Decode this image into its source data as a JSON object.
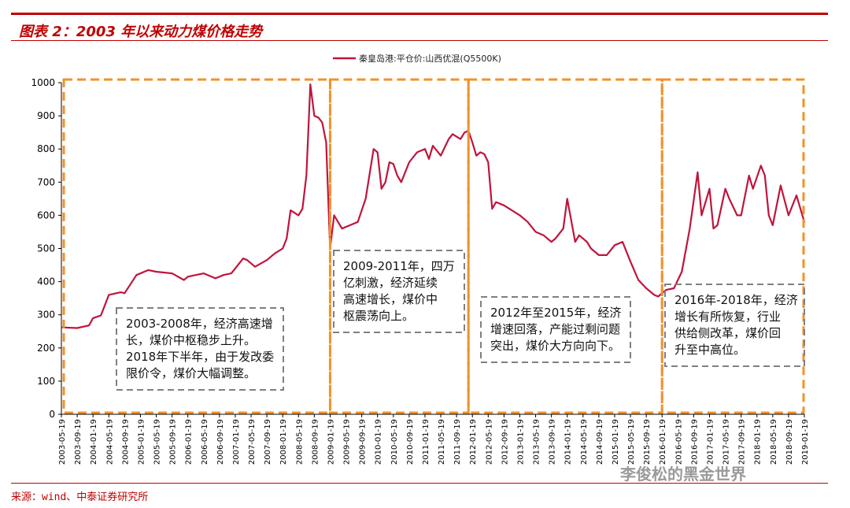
{
  "header": {
    "title": "图表 2：2003 年以来动力煤价格走势"
  },
  "footer": {
    "source": "来源：wind、中泰证券研究所",
    "watermark": "李俊松的黑金世界"
  },
  "chart_data": {
    "type": "line",
    "title": "",
    "xlabel": "",
    "ylabel": "",
    "ylim": [
      0,
      1000
    ],
    "yticks": [
      0,
      100,
      200,
      300,
      400,
      500,
      600,
      700,
      800,
      900,
      1000
    ],
    "grid": false,
    "legend_position": "top-center",
    "colors": {
      "series": "#c0143c",
      "box_orange": "#f0922b",
      "box_gray": "#808080"
    },
    "x_tick_labels": [
      "2003-05-19",
      "2003-09-19",
      "2004-01-19",
      "2004-05-19",
      "2004-09-19",
      "2005-01-19",
      "2005-05-19",
      "2005-09-19",
      "2006-01-19",
      "2006-05-19",
      "2006-09-19",
      "2007-01-19",
      "2007-05-19",
      "2007-09-19",
      "2008-01-19",
      "2008-05-19",
      "2008-09-19",
      "2009-01-19",
      "2009-05-19",
      "2009-09-19",
      "2010-01-19",
      "2010-05-19",
      "2010-09-19",
      "2011-01-19",
      "2011-05-19",
      "2011-09-19",
      "2012-01-19",
      "2012-05-19",
      "2012-09-19",
      "2013-01-19",
      "2013-05-19",
      "2013-09-19",
      "2014-01-19",
      "2014-05-19",
      "2014-09-19",
      "2015-01-19",
      "2015-05-19",
      "2015-09-19",
      "2016-01-19",
      "2016-05-19",
      "2016-09-19",
      "2017-01-19",
      "2017-05-19",
      "2017-09-19",
      "2018-01-19",
      "2018-05-19",
      "2018-09-19",
      "2019-01-19"
    ],
    "series": [
      {
        "name": "秦皇岛港:平仓价:山西优混(Q5500K)",
        "x": [
          "2003-05",
          "2003-09",
          "2003-12",
          "2004-01",
          "2004-03",
          "2004-05",
          "2004-08",
          "2004-09",
          "2004-12",
          "2005-03",
          "2005-05",
          "2005-09",
          "2005-12",
          "2006-01",
          "2006-03",
          "2006-05",
          "2006-08",
          "2006-10",
          "2006-12",
          "2007-01",
          "2007-03",
          "2007-04",
          "2007-06",
          "2007-09",
          "2007-11",
          "2008-01",
          "2008-02",
          "2008-03",
          "2008-05",
          "2008-06",
          "2008-07",
          "2008-08",
          "2008-09",
          "2008-10",
          "2008-11",
          "2008-12",
          "2009-01",
          "2009-02",
          "2009-04",
          "2009-06",
          "2009-08",
          "2009-10",
          "2009-12",
          "2010-01",
          "2010-02",
          "2010-03",
          "2010-04",
          "2010-05",
          "2010-06",
          "2010-07",
          "2010-09",
          "2010-11",
          "2011-01",
          "2011-02",
          "2011-03",
          "2011-05",
          "2011-07",
          "2011-08",
          "2011-10",
          "2011-11",
          "2011-12",
          "2012-01",
          "2012-02",
          "2012-03",
          "2012-04",
          "2012-05",
          "2012-06",
          "2012-07",
          "2012-09",
          "2012-11",
          "2013-01",
          "2013-03",
          "2013-05",
          "2013-07",
          "2013-09",
          "2013-10",
          "2013-12",
          "2014-01",
          "2014-03",
          "2014-04",
          "2014-06",
          "2014-07",
          "2014-09",
          "2014-11",
          "2015-01",
          "2015-03",
          "2015-05",
          "2015-07",
          "2015-09",
          "2015-11",
          "2015-12",
          "2016-02",
          "2016-04",
          "2016-06",
          "2016-08",
          "2016-10",
          "2016-11",
          "2017-01",
          "2017-02",
          "2017-03",
          "2017-05",
          "2017-06",
          "2017-08",
          "2017-09",
          "2017-11",
          "2017-12",
          "2018-02",
          "2018-03",
          "2018-04",
          "2018-05",
          "2018-07",
          "2018-09",
          "2018-11",
          "2019-01"
        ],
        "values": [
          262,
          260,
          268,
          290,
          298,
          360,
          368,
          365,
          420,
          435,
          430,
          425,
          405,
          415,
          420,
          425,
          410,
          420,
          425,
          440,
          470,
          465,
          445,
          465,
          485,
          500,
          530,
          615,
          600,
          620,
          720,
          995,
          900,
          895,
          880,
          820,
          500,
          600,
          560,
          570,
          580,
          650,
          800,
          790,
          680,
          700,
          760,
          755,
          720,
          700,
          760,
          790,
          800,
          770,
          810,
          780,
          830,
          845,
          830,
          850,
          855,
          820,
          780,
          790,
          785,
          760,
          620,
          640,
          630,
          615,
          600,
          580,
          550,
          540,
          520,
          530,
          560,
          650,
          520,
          540,
          520,
          500,
          480,
          480,
          510,
          520,
          460,
          405,
          380,
          360,
          355,
          375,
          380,
          430,
          560,
          730,
          600,
          680,
          560,
          570,
          680,
          650,
          600,
          600,
          720,
          680,
          750,
          720,
          600,
          570,
          690,
          600,
          660,
          580
        ]
      }
    ],
    "annotations": [
      {
        "period": [
          "2003-05",
          "2009-01"
        ],
        "lines": [
          "2003-2008年，经济高速增",
          "长，煤价中枢稳步上升。",
          "2018年下半年，由于发改委",
          "限价令，煤价大幅调整。"
        ]
      },
      {
        "period": [
          "2009-01",
          "2011-12"
        ],
        "lines": [
          "2009-2011年，四万",
          "亿刺激，经济延续",
          "高速增长，煤价中",
          "枢震荡向上。"
        ]
      },
      {
        "period": [
          "2011-12",
          "2016-01"
        ],
        "lines": [
          "2012年至2015年，经济",
          "增速回落，产能过剩问题",
          "突出，煤价大方向向下。"
        ]
      },
      {
        "period": [
          "2016-01",
          "2019-01"
        ],
        "lines": [
          "2016年-2018年，经济",
          "增长有所恢复，行业",
          "供给侧改革，煤价回",
          "升至中高位。"
        ]
      }
    ]
  }
}
